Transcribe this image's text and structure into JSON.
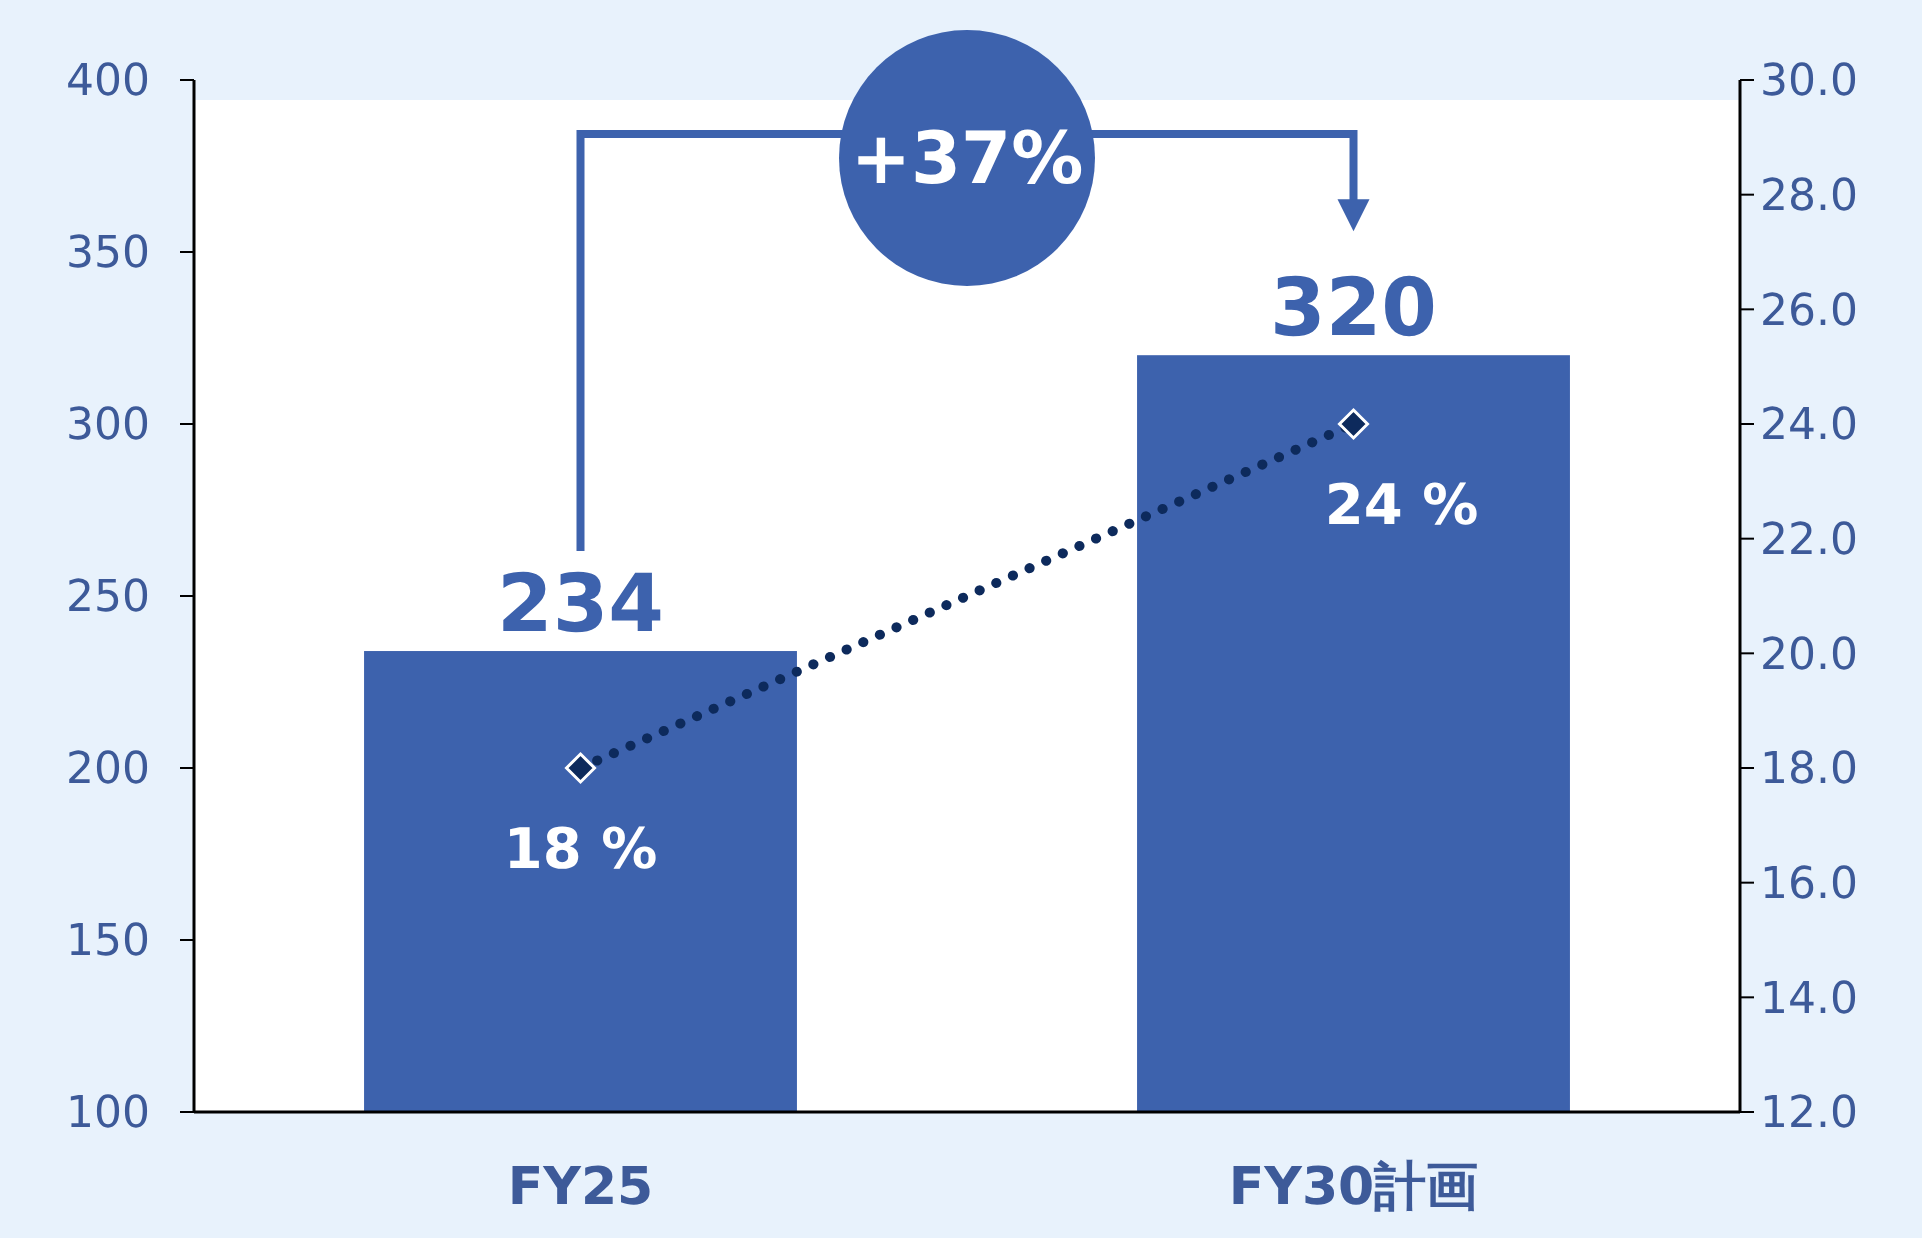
{
  "chart_data": {
    "type": "bar",
    "categories": [
      "FY25",
      "FY30計画"
    ],
    "series": [
      {
        "color": "#3d62ad",
        "values": [
          234,
          320
        ],
        "value_labels": [
          "234",
          "320"
        ]
      },
      {
        "type": "line",
        "axis": "y2",
        "color": "#0d2a5c",
        "values": [
          18,
          24
        ],
        "value_labels": [
          "18 %",
          "24 %"
        ],
        "marker": "diamond",
        "line_style": "dotted"
      }
    ],
    "ylim": [
      100,
      400
    ],
    "yticks": [
      100,
      150,
      200,
      250,
      300,
      350,
      400
    ],
    "y2lim": [
      12,
      30
    ],
    "y2ticks": [
      {
        "value": 12,
        "label": "12.0"
      },
      {
        "value": 14,
        "label": "14.0"
      },
      {
        "value": 16,
        "label": "16.0"
      },
      {
        "value": 18,
        "label": "18.0"
      },
      {
        "value": 20,
        "label": "20.0"
      },
      {
        "value": 22,
        "label": "22.0"
      },
      {
        "value": 24,
        "label": "24.0"
      },
      {
        "value": 26,
        "label": "26.0"
      },
      {
        "value": 28,
        "label": "28.0"
      },
      {
        "value": 30,
        "label": "30.0"
      }
    ],
    "annotations": [
      "+37%"
    ]
  }
}
